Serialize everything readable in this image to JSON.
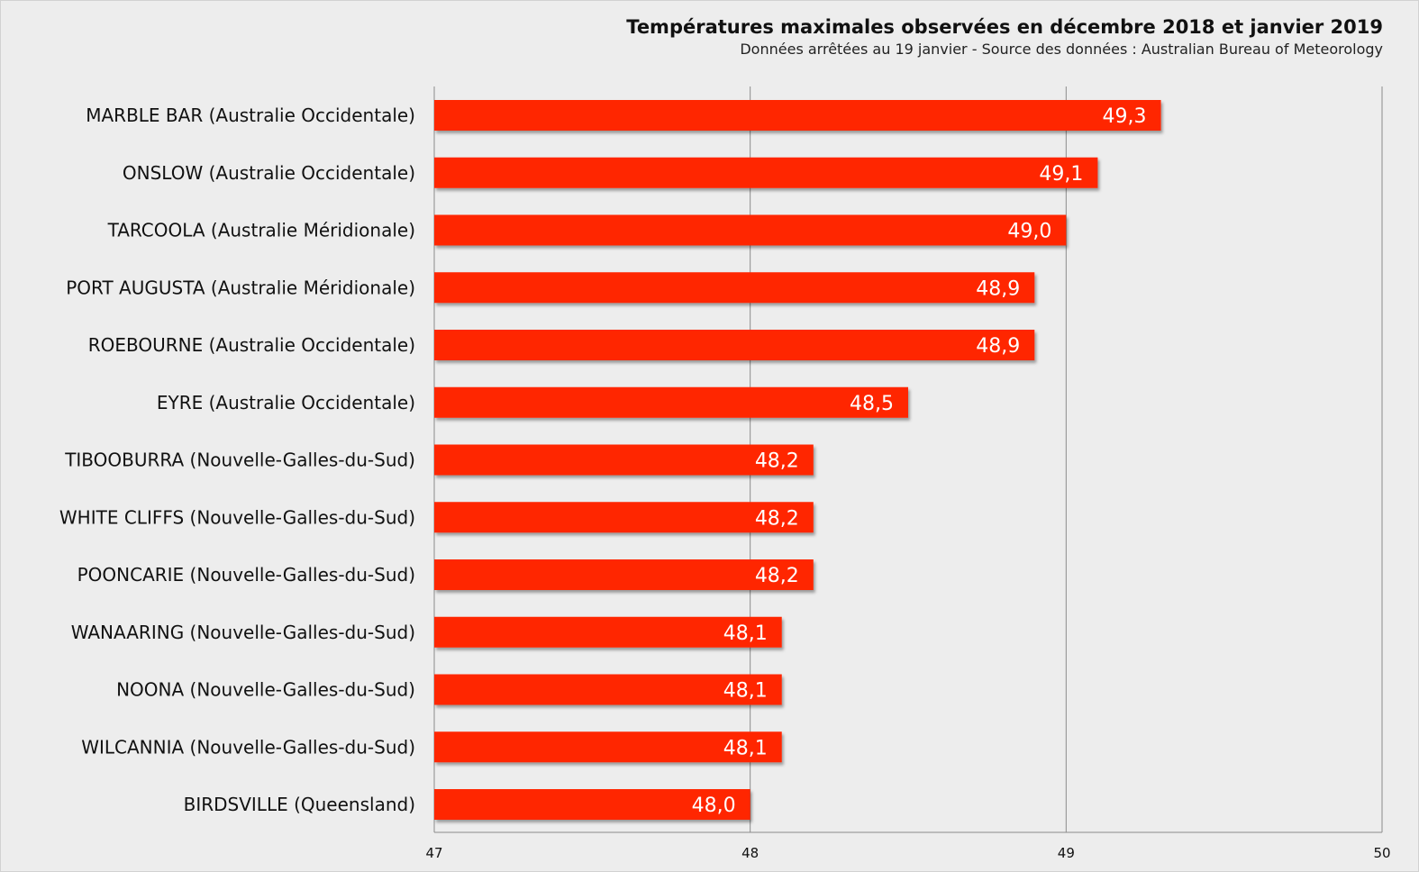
{
  "title": "Températures maximales observées en décembre 2018 et janvier 2019",
  "subtitle": "Données arrêtées au 19 janvier - Source des données : Australian Bureau of Meteorology",
  "colors": {
    "bar": "#ff2600",
    "background": "#ededed",
    "gridline": "#8c8c8c",
    "value_label": "#ffffff"
  },
  "chart_data": {
    "type": "bar",
    "orientation": "horizontal",
    "grid": true,
    "legend": "none",
    "xlim": [
      47,
      50
    ],
    "xticks": [
      "47",
      "48",
      "49",
      "50"
    ],
    "categories": [
      "MARBLE BAR (Australie Occidentale)",
      "ONSLOW (Australie Occidentale)",
      "TARCOOLA (Australie Méridionale)",
      "PORT AUGUSTA (Australie Méridionale)",
      "ROEBOURNE (Australie Occidentale)",
      "EYRE (Australie Occidentale)",
      "TIBOOBURRA (Nouvelle-Galles-du-Sud)",
      "WHITE CLIFFS (Nouvelle-Galles-du-Sud)",
      "POONCARIE (Nouvelle-Galles-du-Sud)",
      "WANAARING (Nouvelle-Galles-du-Sud)",
      "NOONA (Nouvelle-Galles-du-Sud)",
      "WILCANNIA (Nouvelle-Galles-du-Sud)",
      "BIRDSVILLE (Queensland)"
    ],
    "values": [
      49.3,
      49.1,
      49.0,
      48.9,
      48.9,
      48.5,
      48.2,
      48.2,
      48.2,
      48.1,
      48.1,
      48.1,
      48.0
    ],
    "value_labels": [
      "49,3",
      "49,1",
      "49,0",
      "48,9",
      "48,9",
      "48,5",
      "48,2",
      "48,2",
      "48,2",
      "48,1",
      "48,1",
      "48,1",
      "48,0"
    ]
  }
}
